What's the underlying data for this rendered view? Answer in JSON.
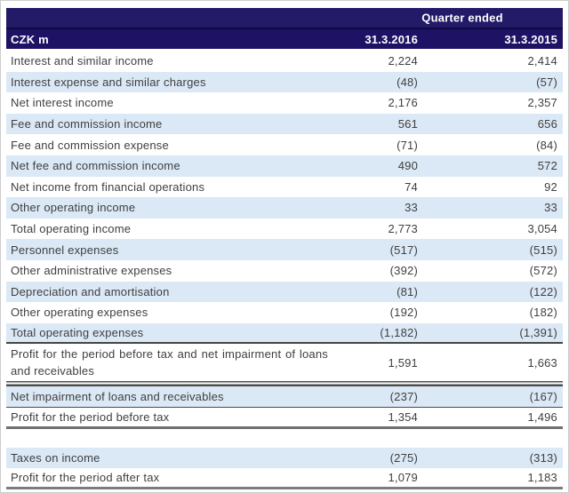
{
  "colors": {
    "header_navy": "#1d1263",
    "header_divider": "#0e0940",
    "row_shade_blue": "#dbe8f5",
    "body_text": "#3f3f3f",
    "header_text": "#ffffff"
  },
  "table": {
    "header": {
      "quarter_ended": "Quarter ended",
      "unit": "CZK m",
      "col2016": "31.3.2016",
      "col2015": "31.3.2015"
    },
    "rows": [
      {
        "label": "Interest and similar income",
        "v2016": "2,224",
        "v2015": "2,414",
        "shade": false,
        "rule": "none"
      },
      {
        "label": "Interest expense and similar charges",
        "v2016": "(48)",
        "v2015": "(57)",
        "shade": true,
        "rule": "none"
      },
      {
        "label": "Net interest income",
        "v2016": "2,176",
        "v2015": "2,357",
        "shade": false,
        "rule": "none"
      },
      {
        "label": "Fee and commission income",
        "v2016": "561",
        "v2015": "656",
        "shade": true,
        "rule": "none"
      },
      {
        "label": "Fee and commission expense",
        "v2016": "(71)",
        "v2015": "(84)",
        "shade": false,
        "rule": "none"
      },
      {
        "label": "Net fee and commission income",
        "v2016": "490",
        "v2015": "572",
        "shade": true,
        "rule": "none"
      },
      {
        "label": "Net income from financial operations",
        "v2016": "74",
        "v2015": "92",
        "shade": false,
        "rule": "none"
      },
      {
        "label": "Other operating income",
        "v2016": "33",
        "v2015": "33",
        "shade": true,
        "rule": "none"
      },
      {
        "label": "Total operating income",
        "v2016": "2,773",
        "v2015": "3,054",
        "shade": false,
        "rule": "none"
      },
      {
        "label": "Personnel expenses",
        "v2016": "(517)",
        "v2015": "(515)",
        "shade": true,
        "rule": "none"
      },
      {
        "label": "Other administrative expenses",
        "v2016": "(392)",
        "v2015": "(572)",
        "shade": false,
        "rule": "none"
      },
      {
        "label": "Depreciation and amortisation",
        "v2016": "(81)",
        "v2015": "(122)",
        "shade": true,
        "rule": "none"
      },
      {
        "label": "Other operating expenses",
        "v2016": "(192)",
        "v2015": "(182)",
        "shade": false,
        "rule": "none"
      },
      {
        "label": "Total operating expenses",
        "v2016": "(1,182)",
        "v2015": "(1,391)",
        "shade": true,
        "rule": "thick"
      },
      {
        "label": "Profit for the period before tax and net impairment of loans and receivables",
        "v2016": "1,591",
        "v2015": "1,663",
        "shade": false,
        "rule": "double",
        "tall": true
      },
      {
        "label": "Net impairment of loans and receivables",
        "v2016": "(237)",
        "v2015": "(167)",
        "shade": true,
        "rule": "single"
      },
      {
        "label": "Profit for the period before tax",
        "v2016": "1,354",
        "v2015": "1,496",
        "shade": false,
        "rule": "gray"
      },
      {
        "label": "Taxes on income",
        "v2016": "(275)",
        "v2015": "(313)",
        "shade": true,
        "rule": "none",
        "gap_before": true
      },
      {
        "label": "Profit for the period after tax",
        "v2016": "1,079",
        "v2015": "1,183",
        "shade": false,
        "rule": "heavy"
      }
    ]
  }
}
